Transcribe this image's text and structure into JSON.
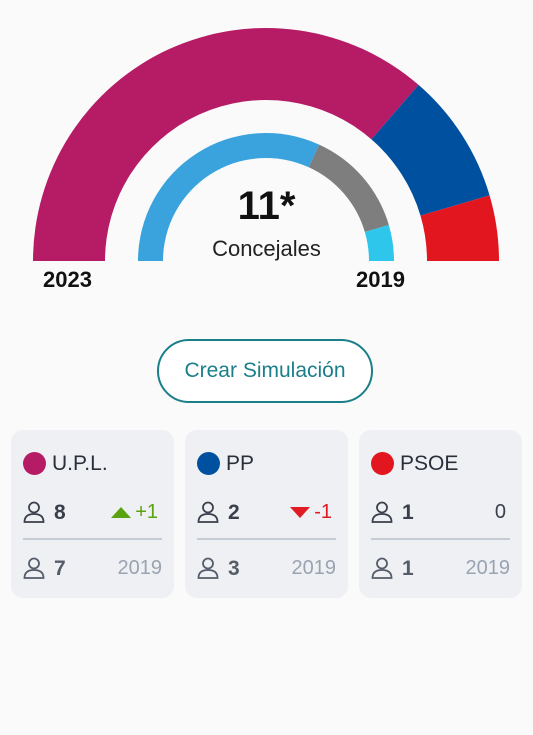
{
  "summary": {
    "total": "11*",
    "total_label": "Concejales",
    "year_current": "2023",
    "year_previous": "2019"
  },
  "simulate_button": "Crear Simulación",
  "outer_ring": {
    "year": "2023",
    "segments": [
      {
        "party": "U.P.L.",
        "seats": 8,
        "color": "#b61b66"
      },
      {
        "party": "PP",
        "seats": 2,
        "color": "#0050a0"
      },
      {
        "party": "PSOE",
        "seats": 1,
        "color": "#e2161f"
      }
    ]
  },
  "inner_ring": {
    "year": "2019",
    "segments": [
      {
        "party": "U.P.L.",
        "seats": 7,
        "color": "#3aa3dd"
      },
      {
        "party": "PP",
        "seats": 3,
        "color": "#7e7e7e"
      },
      {
        "party": "PSOE",
        "seats": 1,
        "color": "#2ec6ea"
      }
    ]
  },
  "cards": [
    {
      "party": "U.P.L.",
      "color": "#b61b66",
      "seats": "8",
      "delta": "+1",
      "direction": "up",
      "prev_seats": "7",
      "prev_year": "2019"
    },
    {
      "party": "PP",
      "color": "#0050a0",
      "seats": "2",
      "delta": "-1",
      "direction": "down",
      "prev_seats": "3",
      "prev_year": "2019"
    },
    {
      "party": "PSOE",
      "color": "#e2161f",
      "seats": "1",
      "delta": "0",
      "direction": "none",
      "prev_seats": "1",
      "prev_year": "2019"
    }
  ]
}
